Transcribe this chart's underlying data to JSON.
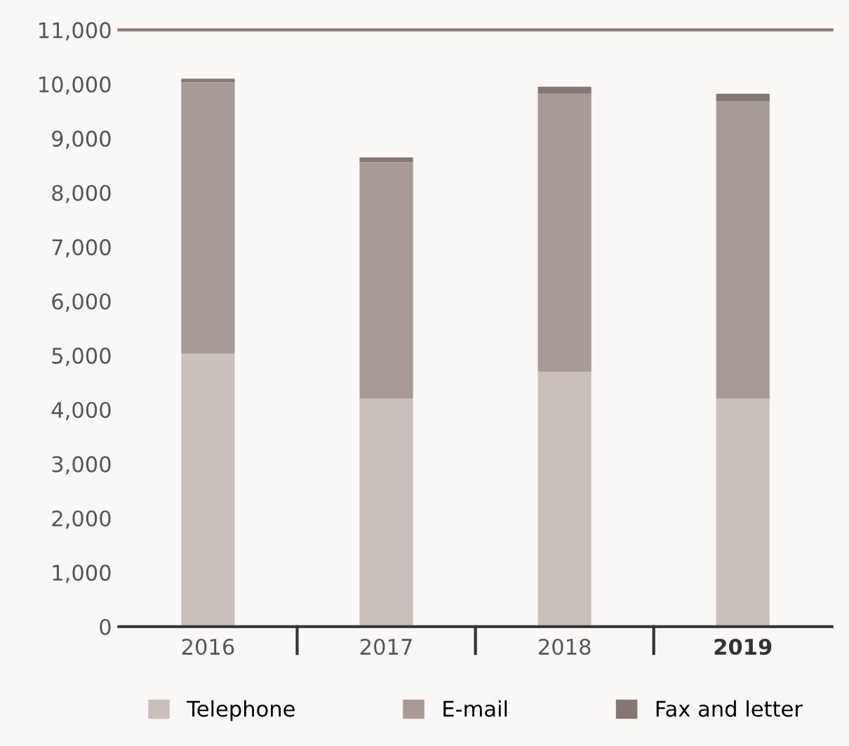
{
  "chart_data": {
    "type": "bar",
    "stacked": true,
    "categories": [
      "2016",
      "2017",
      "2018",
      "2019"
    ],
    "series": [
      {
        "name": "Telephone",
        "color": "#c9c0bb",
        "values": [
          5030,
          4200,
          4700,
          4200
        ]
      },
      {
        "name": "E-mail",
        "color": "#a89b97",
        "values": [
          5000,
          4360,
          5120,
          5490
        ]
      },
      {
        "name": "Fax and letter",
        "color": "#857874",
        "values": [
          70,
          90,
          130,
          130
        ]
      }
    ],
    "ylim": [
      0,
      11000
    ],
    "yticks": [
      {
        "value": 0,
        "label": "0"
      },
      {
        "value": 1000,
        "label": "1,000"
      },
      {
        "value": 2000,
        "label": "2,000"
      },
      {
        "value": 3000,
        "label": "3,000"
      },
      {
        "value": 4000,
        "label": "4,000"
      },
      {
        "value": 5000,
        "label": "5,000"
      },
      {
        "value": 6000,
        "label": "6,000"
      },
      {
        "value": 7000,
        "label": "7,000"
      },
      {
        "value": 8000,
        "label": "8,000"
      },
      {
        "value": 9000,
        "label": "9,000"
      },
      {
        "value": 10000,
        "label": "10,000"
      },
      {
        "value": 11000,
        "label": "11,000"
      }
    ],
    "grid": false,
    "legend": "bottom"
  }
}
